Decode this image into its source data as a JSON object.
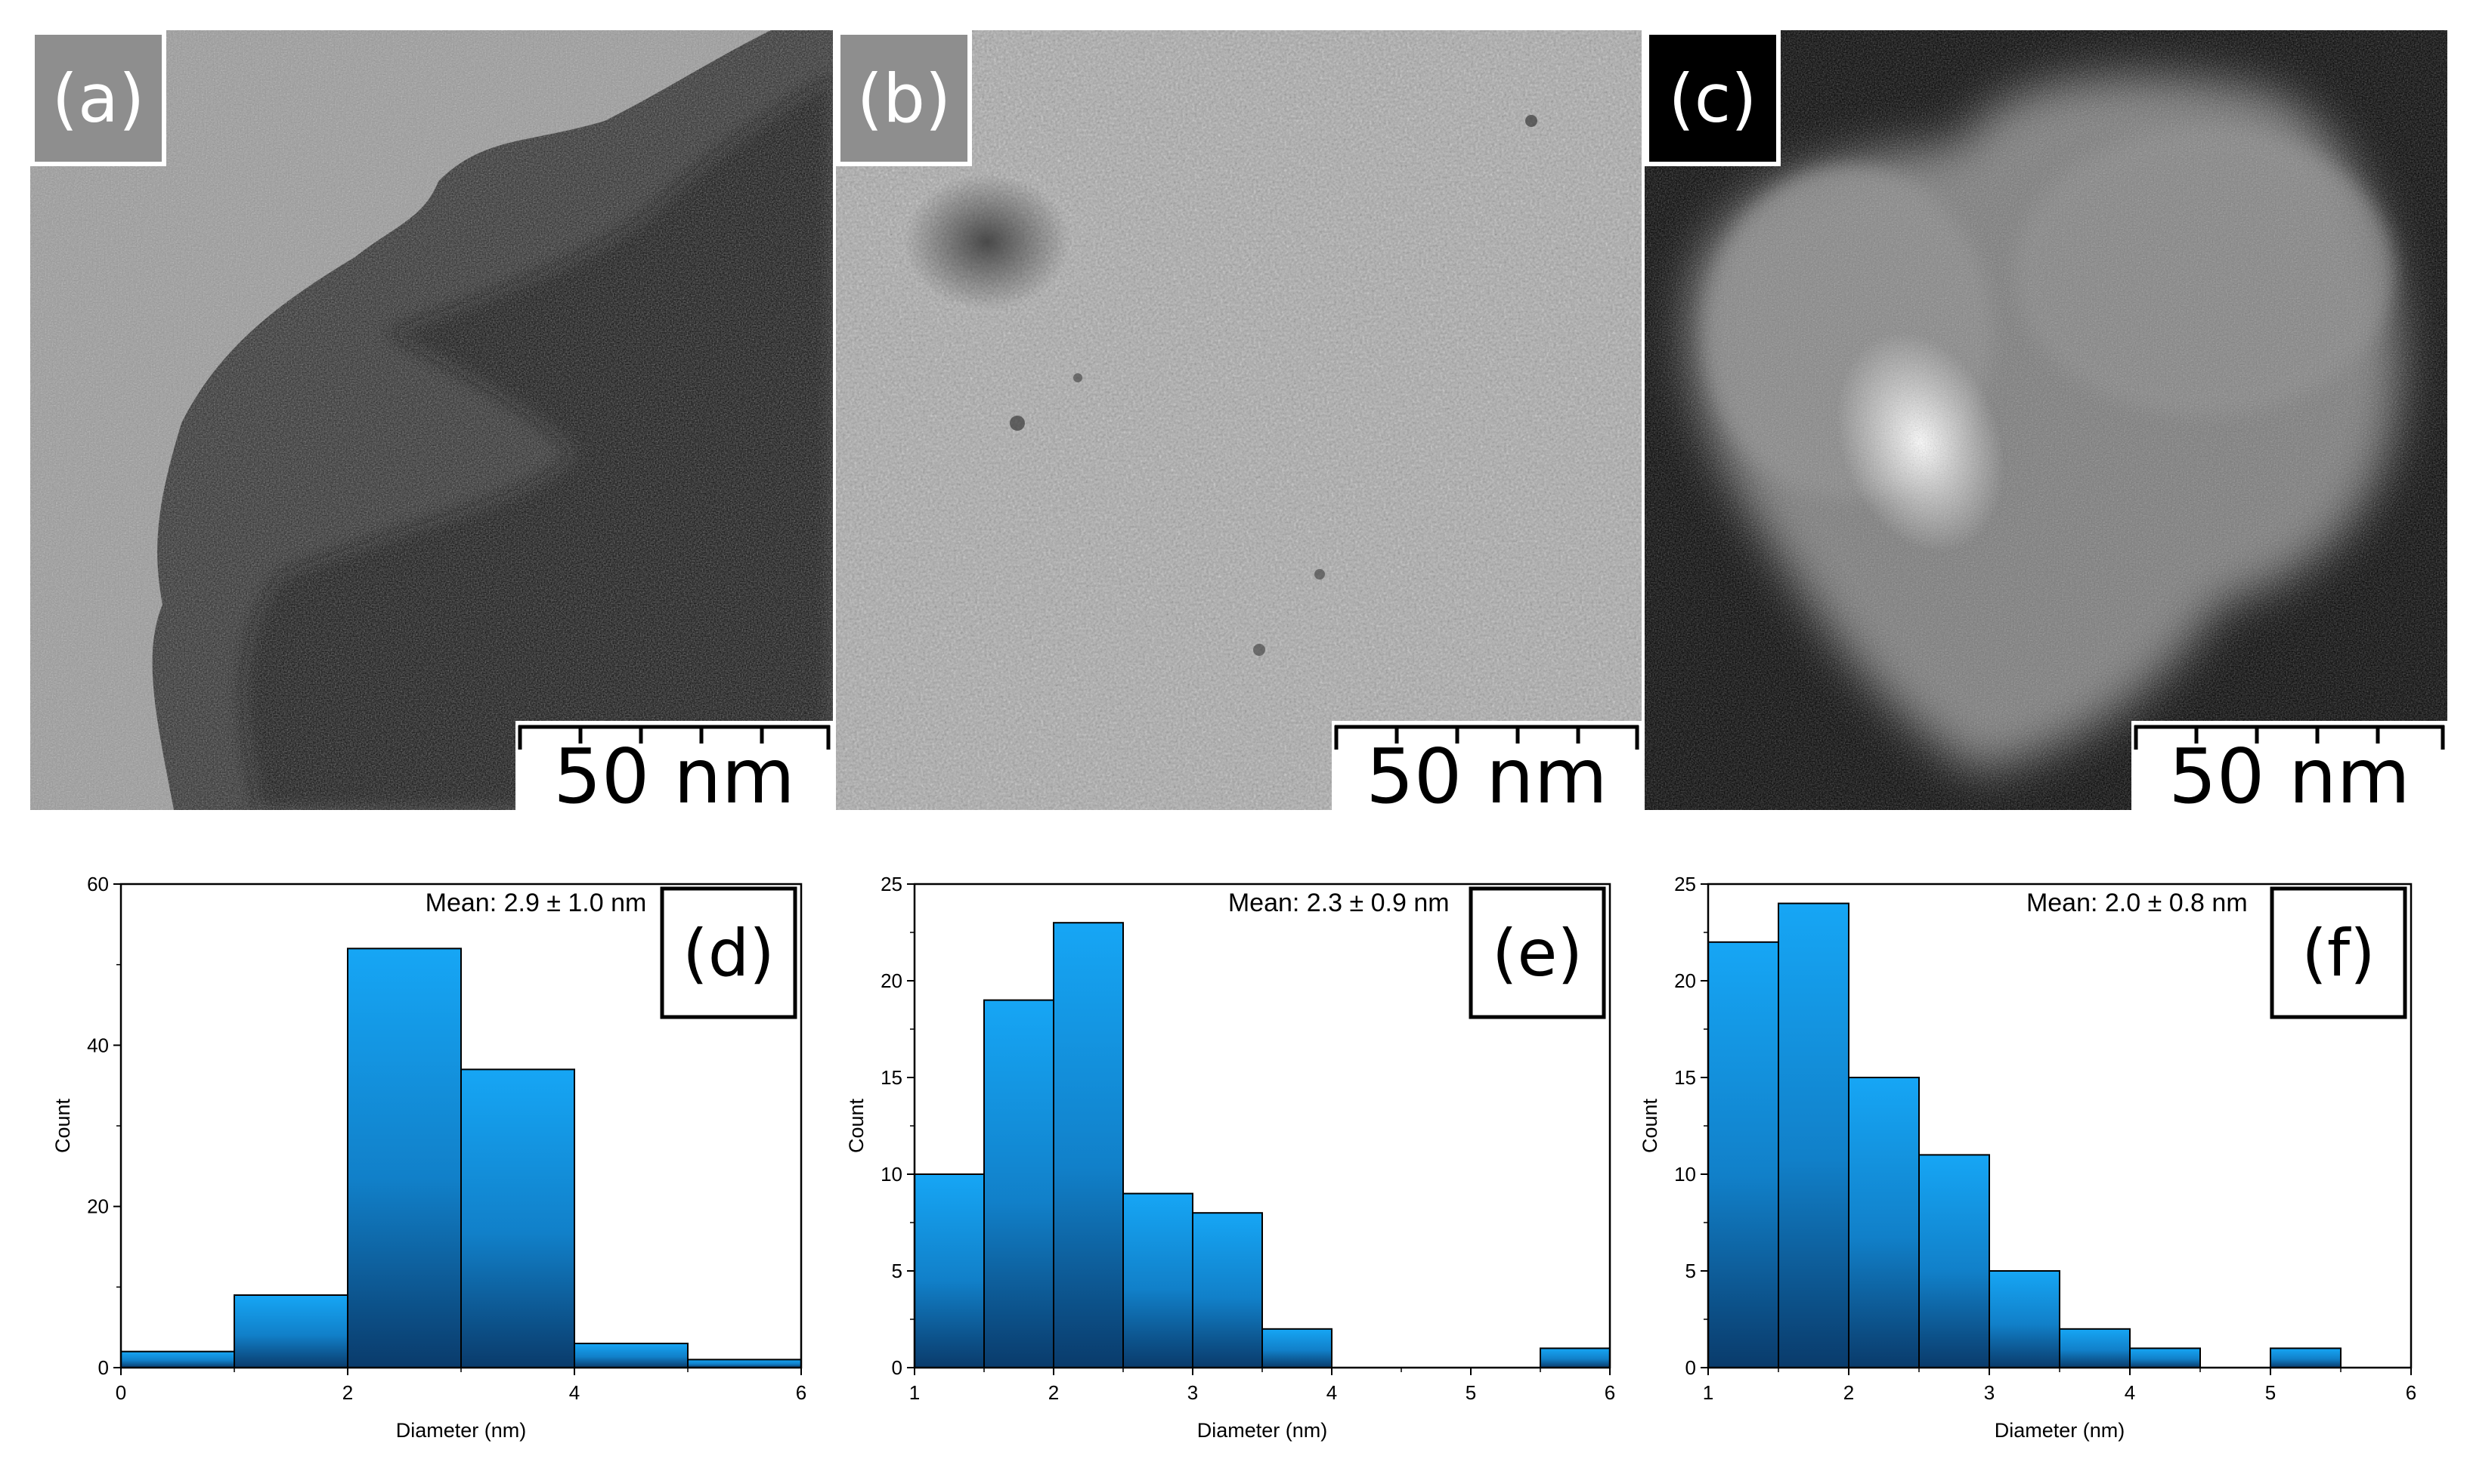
{
  "figure": {
    "panels": [
      {
        "label": "(a)",
        "scale_bar": "50 nm",
        "style": "bright-field TEM",
        "label_style": "gray"
      },
      {
        "label": "(b)",
        "scale_bar": "50 nm",
        "style": "bright-field TEM",
        "label_style": "gray"
      },
      {
        "label": "(c)",
        "scale_bar": "50 nm",
        "style": "dark-field STEM",
        "label_style": "dark"
      }
    ]
  },
  "colors": {
    "bar_top": "#16a6f5",
    "bar_bottom": "#0a3b6b",
    "axis": "#000000"
  },
  "chart_data": [
    {
      "type": "bar",
      "panel_label": "(d)",
      "annotation": "Mean: 2.9 ± 1.0 nm",
      "xlabel": "Diameter (nm)",
      "ylabel": "Count",
      "xlim": [
        0,
        6
      ],
      "ylim": [
        0,
        60
      ],
      "xticks": [
        0,
        2,
        4,
        6
      ],
      "yticks": [
        0,
        20,
        40,
        60
      ],
      "bins": [
        {
          "x0": 0,
          "x1": 1,
          "count": 2
        },
        {
          "x0": 1,
          "x1": 2,
          "count": 9
        },
        {
          "x0": 2,
          "x1": 3,
          "count": 52
        },
        {
          "x0": 3,
          "x1": 4,
          "count": 37
        },
        {
          "x0": 4,
          "x1": 5,
          "count": 3
        },
        {
          "x0": 5,
          "x1": 6,
          "count": 1
        }
      ]
    },
    {
      "type": "bar",
      "panel_label": "(e)",
      "annotation": "Mean: 2.3 ± 0.9 nm",
      "xlabel": "Diameter (nm)",
      "ylabel": "Count",
      "xlim": [
        1,
        6
      ],
      "ylim": [
        0,
        25
      ],
      "xticks": [
        1,
        2,
        3,
        4,
        5,
        6
      ],
      "yticks": [
        0,
        5,
        10,
        15,
        20,
        25
      ],
      "bins": [
        {
          "x0": 1.0,
          "x1": 1.5,
          "count": 10
        },
        {
          "x0": 1.5,
          "x1": 2.0,
          "count": 19
        },
        {
          "x0": 2.0,
          "x1": 2.5,
          "count": 23
        },
        {
          "x0": 2.5,
          "x1": 3.0,
          "count": 9
        },
        {
          "x0": 3.0,
          "x1": 3.5,
          "count": 8
        },
        {
          "x0": 3.5,
          "x1": 4.0,
          "count": 2
        },
        {
          "x0": 5.5,
          "x1": 6.0,
          "count": 1
        }
      ]
    },
    {
      "type": "bar",
      "panel_label": "(f)",
      "annotation": "Mean: 2.0 ± 0.8 nm",
      "xlabel": "Diameter (nm)",
      "ylabel": "Count",
      "xlim": [
        1,
        6
      ],
      "ylim": [
        0,
        25
      ],
      "xticks": [
        1,
        2,
        3,
        4,
        5,
        6
      ],
      "yticks": [
        0,
        5,
        10,
        15,
        20,
        25
      ],
      "bins": [
        {
          "x0": 1.0,
          "x1": 1.5,
          "count": 22
        },
        {
          "x0": 1.5,
          "x1": 2.0,
          "count": 24
        },
        {
          "x0": 2.0,
          "x1": 2.5,
          "count": 15
        },
        {
          "x0": 2.5,
          "x1": 3.0,
          "count": 11
        },
        {
          "x0": 3.0,
          "x1": 3.5,
          "count": 5
        },
        {
          "x0": 3.5,
          "x1": 4.0,
          "count": 2
        },
        {
          "x0": 4.0,
          "x1": 4.5,
          "count": 1
        },
        {
          "x0": 5.0,
          "x1": 5.5,
          "count": 1
        }
      ]
    }
  ]
}
